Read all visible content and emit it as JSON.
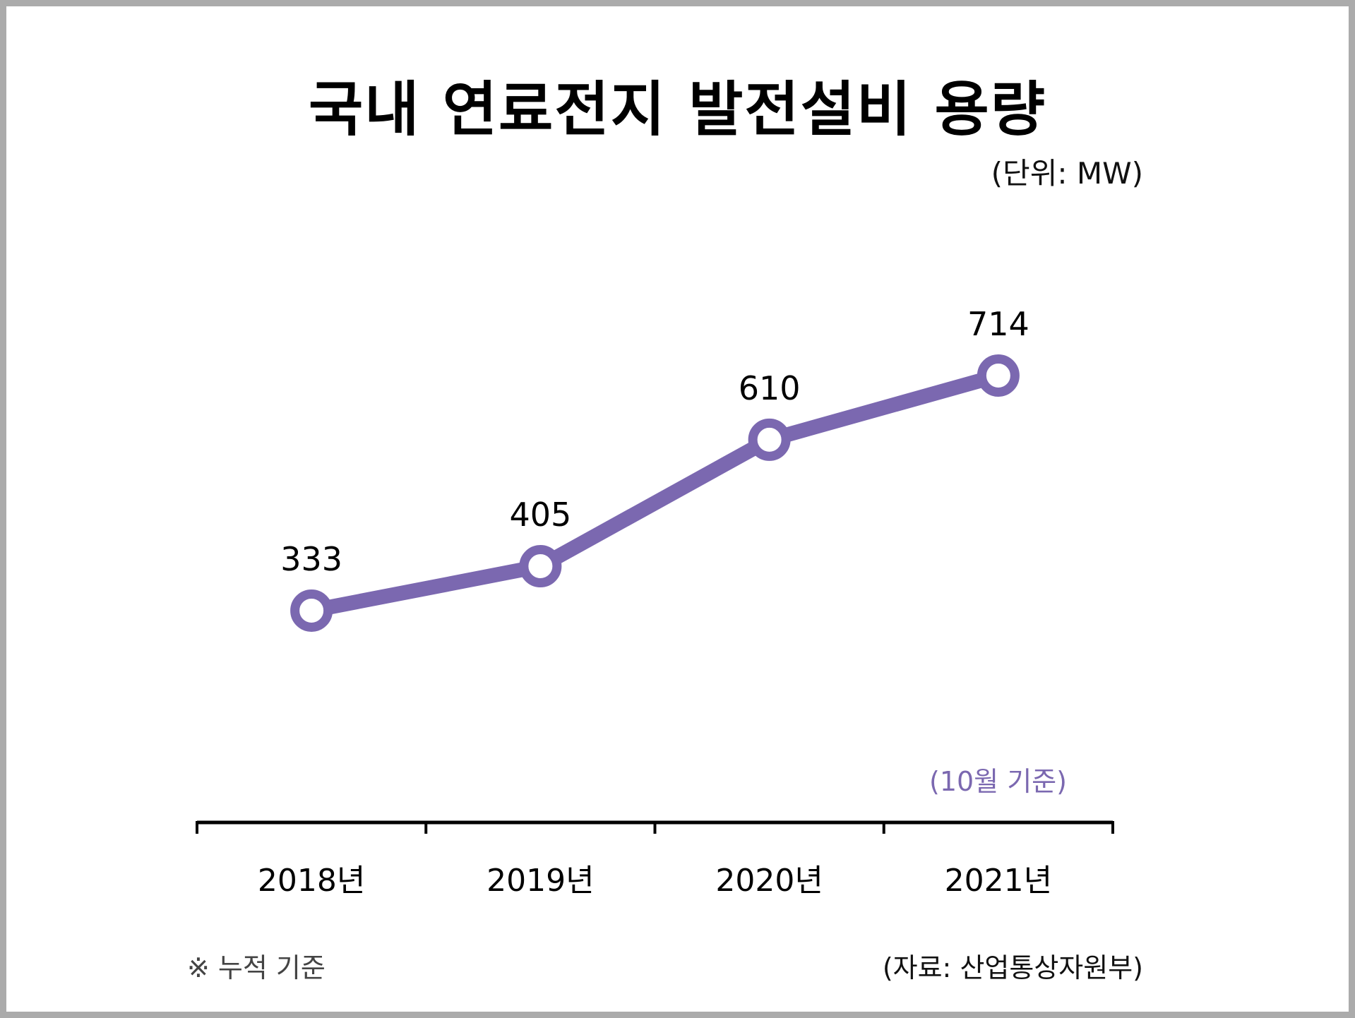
{
  "chart_data": {
    "type": "line",
    "title": "국내 연료전지 발전설비 용량",
    "unit_label": "(단위: MW)",
    "categories": [
      "2018년",
      "2019년",
      "2020년",
      "2021년"
    ],
    "series": [
      {
        "name": "연료전지 발전설비 용량",
        "values": [
          333,
          405,
          610,
          714
        ],
        "color": "#7b68b0"
      }
    ],
    "data_labels": [
      "333",
      "405",
      "610",
      "714"
    ],
    "xlabel": "",
    "ylabel": "",
    "grid": false,
    "legend": "none",
    "annotation": "(10월 기준)",
    "footnote": "※ 누적 기준",
    "source": "(자료: 산업통상자원부)"
  },
  "colors": {
    "line": "#7b68b0",
    "marker_fill": "#ffffff",
    "axis": "#000000",
    "annotation": "#7b68b0"
  }
}
